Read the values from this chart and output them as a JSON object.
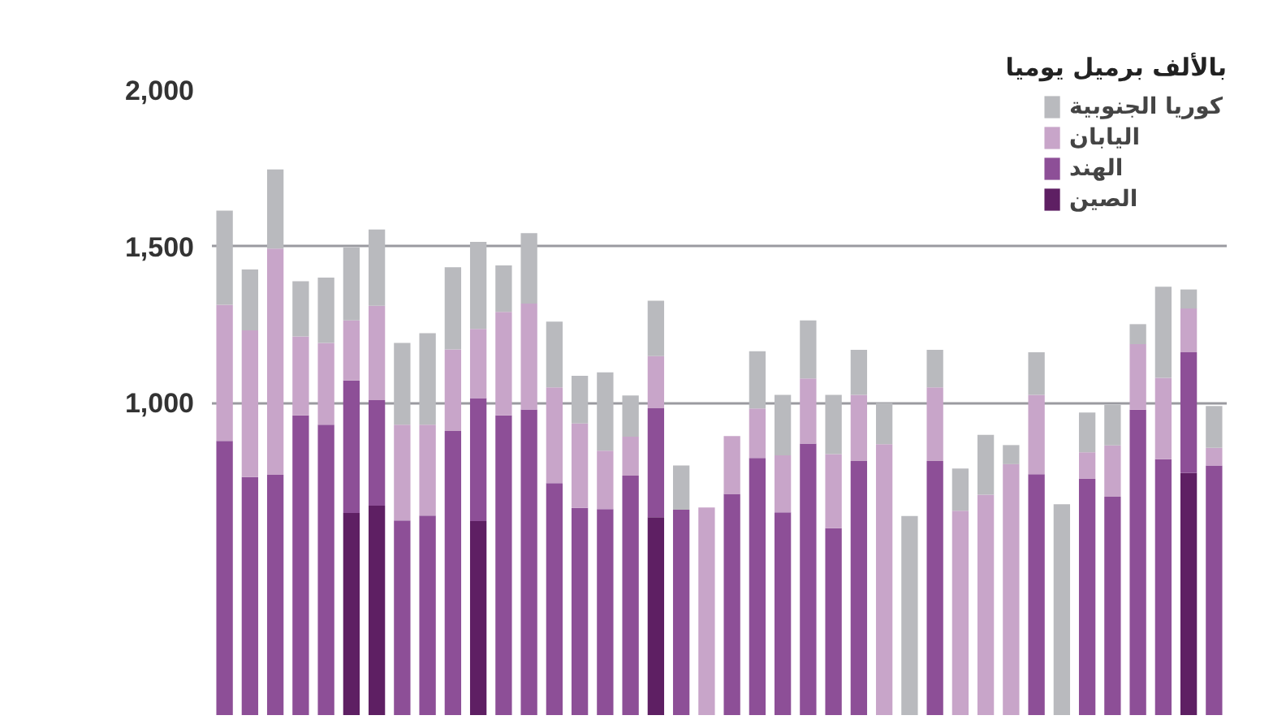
{
  "chart_data": {
    "type": "bar",
    "stacked": true,
    "subtitle": "بالألف برميل يوميا",
    "categories": [
      null,
      null,
      null,
      null,
      null,
      null,
      null,
      null,
      null,
      null,
      null,
      null,
      null,
      null,
      null,
      null,
      null,
      null,
      null,
      null,
      null,
      null,
      null,
      null,
      null,
      null,
      null,
      null,
      null,
      null,
      null,
      null,
      null,
      null,
      null,
      null,
      null,
      null,
      null,
      null
    ],
    "series": [
      {
        "name": "الصين",
        "color": "#5e1f63",
        "values": [
          null,
          null,
          null,
          null,
          null,
          647,
          670,
          null,
          null,
          null,
          621,
          null,
          null,
          null,
          null,
          null,
          null,
          633,
          null,
          null,
          null,
          null,
          null,
          null,
          null,
          null,
          null,
          null,
          null,
          null,
          null,
          null,
          null,
          null,
          null,
          null,
          null,
          null,
          775,
          null
        ]
      },
      {
        "name": "الهند",
        "color": "#8d4f97",
        "values": [
          877,
          762,
          769,
          959,
          929,
          424,
          338,
          623,
          638,
          909,
          393,
          959,
          978,
          742,
          663,
          659,
          766,
          349,
          657,
          null,
          708,
          823,
          649,
          869,
          598,
          813,
          null,
          null,
          813,
          null,
          null,
          null,
          771,
          null,
          756,
          699,
          977,
          819,
          386,
          799
        ]
      },
      {
        "name": "اليابان",
        "color": "#c8a5c9",
        "values": [
          436,
          469,
          724,
          253,
          262,
          192,
          302,
          306,
          291,
          261,
          222,
          331,
          339,
          307,
          270,
          187,
          125,
          167,
          null,
          664,
          185,
          158,
          182,
          208,
          237,
          212,
          867,
          null,
          236,
          654,
          705,
          803,
          254,
          null,
          85,
          164,
          210,
          260,
          140,
          56
        ]
      },
      {
        "name": "كوريا الجنوبية",
        "color": "#b9babe",
        "values": [
          301,
          195,
          253,
          176,
          209,
          233,
          244,
          262,
          293,
          263,
          278,
          149,
          225,
          210,
          153,
          251,
          132,
          177,
          142,
          null,
          null,
          183,
          194,
          186,
          190,
          144,
          132,
          637,
          120,
          135,
          192,
          61,
          136,
          675,
          127,
          130,
          64,
          292,
          61,
          134
        ]
      }
    ],
    "ylim": [
      0,
      2000
    ],
    "yticks": [
      {
        "value": 1000,
        "label": "1,000"
      },
      {
        "value": 1500,
        "label": "1,500"
      },
      {
        "value": 2000,
        "label": "2,000"
      }
    ],
    "grid": "y",
    "legend": "top right",
    "tick_labels": "y"
  }
}
